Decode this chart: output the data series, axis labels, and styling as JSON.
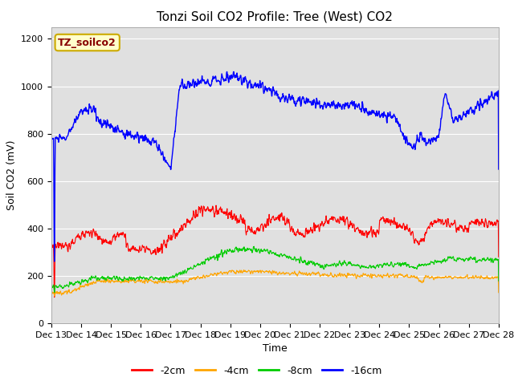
{
  "title": "Tonzi Soil CO2 Profile: Tree (West) CO2",
  "ylabel": "Soil CO2 (mV)",
  "xlabel": "Time",
  "legend_label": "TZ_soilco2",
  "series_labels": [
    "-2cm",
    "-4cm",
    "-8cm",
    "-16cm"
  ],
  "series_colors": [
    "#ff0000",
    "#ffa500",
    "#00cc00",
    "#0000ff"
  ],
  "x_tick_labels": [
    "Dec 13",
    "Dec 14",
    "Dec 15",
    "Dec 16",
    "Dec 17",
    "Dec 18",
    "Dec 19",
    "Dec 20",
    "Dec 21",
    "Dec 22",
    "Dec 23",
    "Dec 24",
    "Dec 25",
    "Dec 26",
    "Dec 27",
    "Dec 28"
  ],
  "ylim": [
    0,
    1250
  ],
  "background_color": "#e0e0e0",
  "plot_bg_color": "#e0e0e0",
  "legend_box_color": "#ffffcc",
  "legend_box_edge": "#ccaa00",
  "title_fontsize": 11,
  "axis_label_fontsize": 9,
  "tick_fontsize": 8
}
